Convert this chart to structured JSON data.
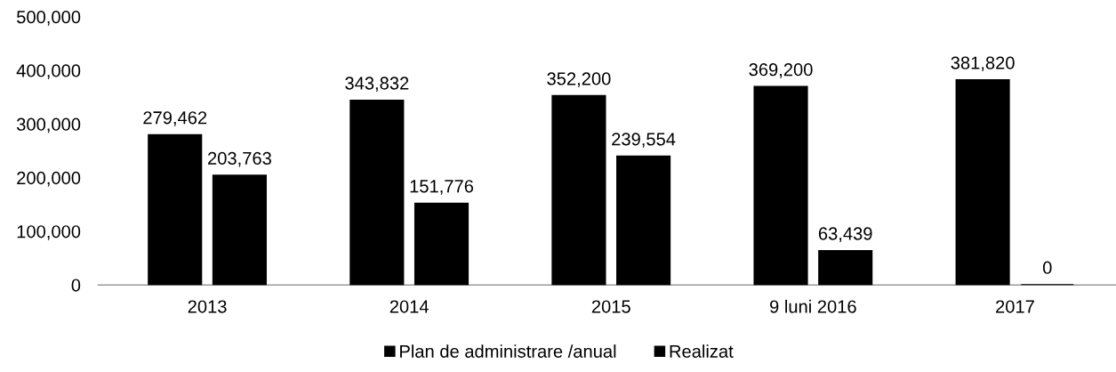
{
  "chart_data": {
    "type": "bar",
    "categories": [
      "2013",
      "2014",
      "2015",
      "9 luni 2016",
      "2017"
    ],
    "series": [
      {
        "name": "Plan de administrare /anual",
        "color": "#000000",
        "values": [
          279462,
          343832,
          352200,
          369200,
          381820
        ],
        "value_labels": [
          "279,462",
          "343,832",
          "352,200",
          "369,200",
          "381,820"
        ]
      },
      {
        "name": "Realizat",
        "color": "#000000",
        "values": [
          203763,
          151776,
          239554,
          63439,
          0
        ],
        "value_labels": [
          "203,763",
          "151,776",
          "239,554",
          "63,439",
          "0"
        ]
      }
    ],
    "ylim": [
      0,
      500000
    ],
    "yticks": [
      0,
      {
        "value": 100000,
        "label": "100,000"
      },
      {
        "value": 200000,
        "label": "200,000"
      },
      {
        "value": 300000,
        "label": "300,000"
      },
      {
        "value": 400000,
        "label": "400,000"
      },
      {
        "value": 500000,
        "label": "500,000"
      }
    ],
    "grid": false,
    "legend": "bottom"
  }
}
